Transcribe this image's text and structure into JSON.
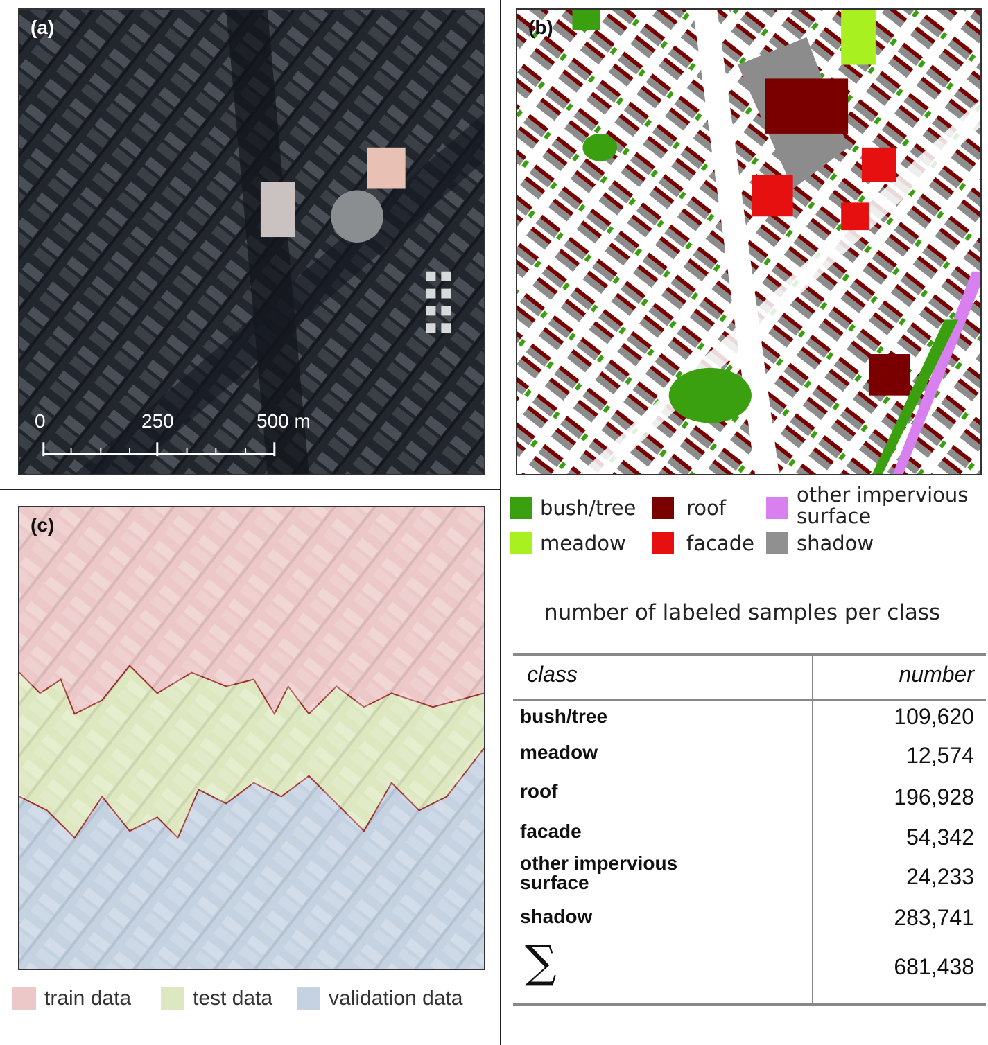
{
  "panels": {
    "a": {
      "label": "(a)"
    },
    "b": {
      "label": "(b)"
    },
    "c": {
      "label": "(c)"
    }
  },
  "scalebar": {
    "ticks": [
      "0",
      "250",
      "500 m"
    ]
  },
  "class_legend": [
    {
      "key": "bush_tree",
      "label": "bush/tree",
      "color": "#3aa010"
    },
    {
      "key": "roof",
      "label": "roof",
      "color": "#7a0000"
    },
    {
      "key": "other",
      "label_line1": "other impervious",
      "label_line2": "surface",
      "color": "#d880f0"
    },
    {
      "key": "meadow",
      "label": "meadow",
      "color": "#a8f020"
    },
    {
      "key": "facade",
      "label": "facade",
      "color": "#e61010"
    },
    {
      "key": "shadow",
      "label": "shadow",
      "color": "#909090"
    }
  ],
  "split_legend": [
    {
      "label": "train data",
      "color": "#ecc8c8"
    },
    {
      "label": "test data",
      "color": "#dde8c0"
    },
    {
      "label": "validation data",
      "color": "#c4d2e2"
    }
  ],
  "table": {
    "title": "number of labeled samples per class",
    "header": {
      "class": "class",
      "number": "number"
    },
    "rows": [
      {
        "class": "bush/tree",
        "number": "109,620"
      },
      {
        "class": "meadow",
        "number": "12,574"
      },
      {
        "class": "roof",
        "number": "196,928"
      },
      {
        "class": "facade",
        "number": "54,342"
      },
      {
        "class_line1": "other impervious",
        "class_line2": "surface",
        "number": "24,233"
      },
      {
        "class": "shadow",
        "number": "283,741"
      }
    ],
    "total": {
      "symbol": "∑",
      "number": "681,438"
    }
  }
}
